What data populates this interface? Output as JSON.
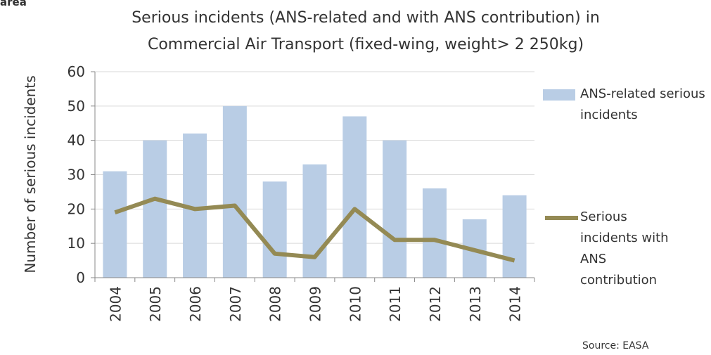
{
  "header_fragment": "area",
  "chart_data": {
    "type": "bar_line",
    "title": [
      "Serious incidents (ANS-related and with ANS contribution) in",
      "Commercial Air Transport (fixed-wing, weight> 2 250kg)"
    ],
    "y_label": "Number of  serious incidents",
    "source": "Source: EASA",
    "categories": [
      "2004",
      "2005",
      "2006",
      "2007",
      "2008",
      "2009",
      "2010",
      "2011",
      "2012",
      "2013",
      "2014"
    ],
    "series": [
      {
        "name": "ANS-related serious incidents",
        "type": "bar",
        "color": "#b9cde5",
        "values": [
          31,
          40,
          42,
          50,
          28,
          33,
          47,
          40,
          26,
          17,
          24
        ]
      },
      {
        "name": "Serious incidents with ANS contribution",
        "type": "line",
        "color": "#948a54",
        "values": [
          19,
          23,
          20,
          21,
          7,
          6,
          20,
          11,
          11,
          8,
          5
        ]
      }
    ],
    "ylim": [
      0,
      60
    ],
    "yticks": [
      0,
      10,
      20,
      30,
      40,
      50,
      60
    ],
    "grid": true
  }
}
